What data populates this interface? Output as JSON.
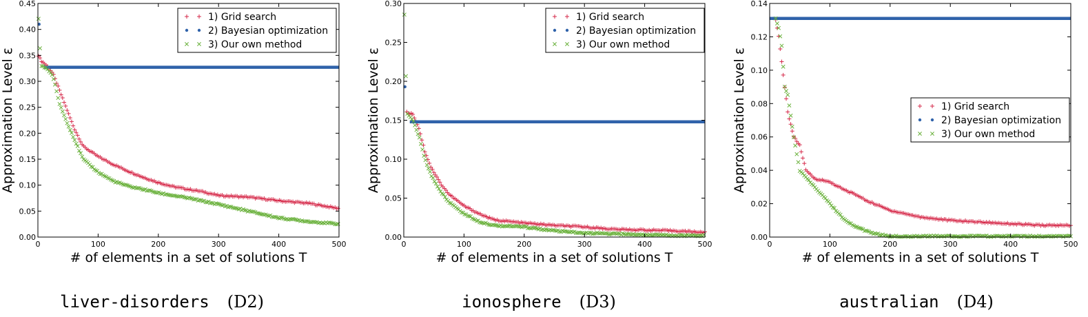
{
  "colors": {
    "grid": "#d62a4a",
    "bayes": "#2f62aa",
    "ours": "#6ab13c"
  },
  "charts": [
    {
      "dataset": "liver-disorders",
      "label": "(D2)"
    },
    {
      "dataset": "ionosphere",
      "label": "(D3)"
    },
    {
      "dataset": "australian",
      "label": "(D4)"
    }
  ],
  "chart_data": [
    {
      "type": "scatter",
      "title": "",
      "xlabel": "# of elements in a set of solutions T",
      "ylabel": "Approximation Level ε",
      "xlim": [
        0,
        500
      ],
      "ylim": [
        0,
        0.45
      ],
      "xticks": [
        "0",
        "100",
        "200",
        "300",
        "400",
        "500"
      ],
      "yticks": [
        "0.00",
        "0.05",
        "0.10",
        "0.15",
        "0.20",
        "0.25",
        "0.30",
        "0.35",
        "0.40",
        "0.45"
      ],
      "legend_position": "top-right",
      "series": [
        {
          "name": "1) Grid search",
          "marker": "+",
          "color": "#d62a4a",
          "points": [
            [
              1,
              0.35
            ],
            [
              5,
              0.34
            ],
            [
              15,
              0.33
            ],
            [
              25,
              0.315
            ],
            [
              40,
              0.27
            ],
            [
              50,
              0.24
            ],
            [
              60,
              0.21
            ],
            [
              75,
              0.175
            ],
            [
              100,
              0.155
            ],
            [
              125,
              0.14
            ],
            [
              150,
              0.127
            ],
            [
              175,
              0.115
            ],
            [
              200,
              0.105
            ],
            [
              225,
              0.097
            ],
            [
              250,
              0.092
            ],
            [
              275,
              0.087
            ],
            [
              300,
              0.08
            ],
            [
              350,
              0.077
            ],
            [
              400,
              0.07
            ],
            [
              450,
              0.065
            ],
            [
              490,
              0.057
            ],
            [
              500,
              0.055
            ]
          ]
        },
        {
          "name": "2) Bayesian optimization",
          "marker": "•",
          "color": "#2f62aa",
          "points": [
            [
              2,
              0.41
            ],
            [
              10,
              0.327
            ],
            [
              500,
              0.327
            ]
          ]
        },
        {
          "name": "3) Our own method",
          "marker": "×",
          "color": "#6ab13c",
          "points": [
            [
              1,
              0.42
            ],
            [
              5,
              0.33
            ],
            [
              15,
              0.325
            ],
            [
              25,
              0.31
            ],
            [
              35,
              0.26
            ],
            [
              45,
              0.23
            ],
            [
              60,
              0.19
            ],
            [
              75,
              0.15
            ],
            [
              100,
              0.125
            ],
            [
              125,
              0.108
            ],
            [
              150,
              0.098
            ],
            [
              175,
              0.092
            ],
            [
              200,
              0.085
            ],
            [
              250,
              0.075
            ],
            [
              300,
              0.063
            ],
            [
              350,
              0.05
            ],
            [
              400,
              0.037
            ],
            [
              450,
              0.03
            ],
            [
              500,
              0.025
            ]
          ]
        }
      ]
    },
    {
      "type": "scatter",
      "title": "",
      "xlabel": "# of elements in a set of solutions T",
      "ylabel": "Approximation Level ε",
      "xlim": [
        0,
        500
      ],
      "ylim": [
        0,
        0.3
      ],
      "xticks": [
        "0",
        "100",
        "200",
        "300",
        "400",
        "500"
      ],
      "yticks": [
        "0.00",
        "0.05",
        "0.10",
        "0.15",
        "0.20",
        "0.25",
        "0.30"
      ],
      "legend_position": "top-right",
      "series": [
        {
          "name": "1) Grid search",
          "marker": "+",
          "color": "#d62a4a",
          "points": [
            [
              5,
              0.16
            ],
            [
              15,
              0.158
            ],
            [
              25,
              0.14
            ],
            [
              35,
              0.11
            ],
            [
              45,
              0.09
            ],
            [
              60,
              0.07
            ],
            [
              75,
              0.055
            ],
            [
              100,
              0.04
            ],
            [
              125,
              0.03
            ],
            [
              150,
              0.022
            ],
            [
              200,
              0.018
            ],
            [
              250,
              0.015
            ],
            [
              300,
              0.013
            ],
            [
              350,
              0.01
            ],
            [
              400,
              0.009
            ],
            [
              450,
              0.008
            ],
            [
              500,
              0.006
            ]
          ]
        },
        {
          "name": "2) Bayesian optimization",
          "marker": "•",
          "color": "#2f62aa",
          "points": [
            [
              2,
              0.193
            ],
            [
              10,
              0.148
            ],
            [
              500,
              0.148
            ]
          ]
        },
        {
          "name": "3) Our own method",
          "marker": "×",
          "color": "#6ab13c",
          "points": [
            [
              1,
              0.285
            ],
            [
              5,
              0.16
            ],
            [
              15,
              0.15
            ],
            [
              25,
              0.13
            ],
            [
              35,
              0.1
            ],
            [
              45,
              0.08
            ],
            [
              60,
              0.06
            ],
            [
              75,
              0.045
            ],
            [
              100,
              0.03
            ],
            [
              125,
              0.02
            ],
            [
              150,
              0.015
            ],
            [
              200,
              0.013
            ],
            [
              250,
              0.008
            ],
            [
              300,
              0.005
            ],
            [
              350,
              0.004
            ],
            [
              400,
              0.003
            ],
            [
              450,
              0.002
            ],
            [
              500,
              0.002
            ]
          ]
        }
      ]
    },
    {
      "type": "scatter",
      "title": "",
      "xlabel": "# of elements in a set of solutions T",
      "ylabel": "Approximation Level ε",
      "xlim": [
        0,
        500
      ],
      "ylim": [
        0,
        0.14
      ],
      "xticks": [
        "0",
        "100",
        "200",
        "300",
        "400",
        "500"
      ],
      "yticks": [
        "0.00",
        "0.02",
        "0.04",
        "0.06",
        "0.08",
        "0.10",
        "0.12",
        "0.14"
      ],
      "legend_position": "center-right",
      "series": [
        {
          "name": "1) Grid search",
          "marker": "+",
          "color": "#d62a4a",
          "points": [
            [
              10,
              0.13
            ],
            [
              15,
              0.12
            ],
            [
              20,
              0.105
            ],
            [
              25,
              0.09
            ],
            [
              30,
              0.075
            ],
            [
              40,
              0.06
            ],
            [
              50,
              0.055
            ],
            [
              60,
              0.04
            ],
            [
              75,
              0.035
            ],
            [
              100,
              0.033
            ],
            [
              125,
              0.028
            ],
            [
              140,
              0.026
            ],
            [
              160,
              0.022
            ],
            [
              200,
              0.016
            ],
            [
              250,
              0.012
            ],
            [
              300,
              0.01
            ],
            [
              350,
              0.009
            ],
            [
              400,
              0.008
            ],
            [
              450,
              0.007
            ],
            [
              500,
              0.007
            ]
          ]
        },
        {
          "name": "2) Bayesian optimization",
          "marker": "•",
          "color": "#2f62aa",
          "points": [
            [
              0,
              0.131
            ],
            [
              500,
              0.131
            ]
          ]
        },
        {
          "name": "3) Our own method",
          "marker": "×",
          "color": "#6ab13c",
          "points": [
            [
              10,
              0.131
            ],
            [
              15,
              0.125
            ],
            [
              20,
              0.115
            ],
            [
              25,
              0.09
            ],
            [
              30,
              0.085
            ],
            [
              40,
              0.06
            ],
            [
              50,
              0.04
            ],
            [
              75,
              0.03
            ],
            [
              100,
              0.02
            ],
            [
              125,
              0.01
            ],
            [
              150,
              0.005
            ],
            [
              175,
              0.002
            ],
            [
              200,
              0.0005
            ],
            [
              300,
              0.0005
            ],
            [
              400,
              0.0005
            ],
            [
              500,
              0.0005
            ]
          ]
        }
      ]
    }
  ]
}
